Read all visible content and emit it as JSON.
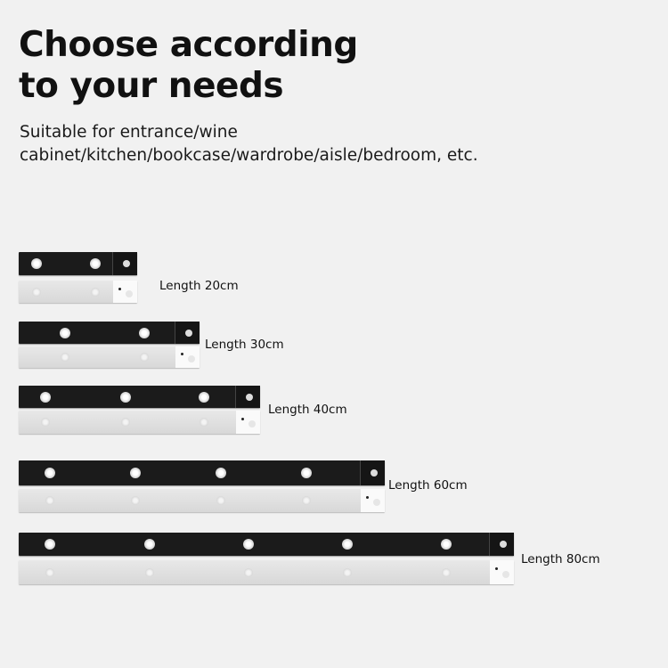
{
  "heading": {
    "line1": "Choose according",
    "line2": "to your needs"
  },
  "subtitle": {
    "line1": "Suitable for entrance/wine",
    "line2": "cabinet/kitchen/bookcase/wardrobe/aisle/bedroom, etc."
  },
  "products": [
    {
      "label": "Length 20cm",
      "length_cm": 20
    },
    {
      "label": "Length 30cm",
      "length_cm": 30
    },
    {
      "label": "Length 40cm",
      "length_cm": 40
    },
    {
      "label": "Length 60cm",
      "length_cm": 60
    },
    {
      "label": "Length 80cm",
      "length_cm": 80
    }
  ],
  "colors": {
    "background": "#f1f1f1",
    "black_bar": "#1b1b1b",
    "white_bar": "#dedede"
  }
}
